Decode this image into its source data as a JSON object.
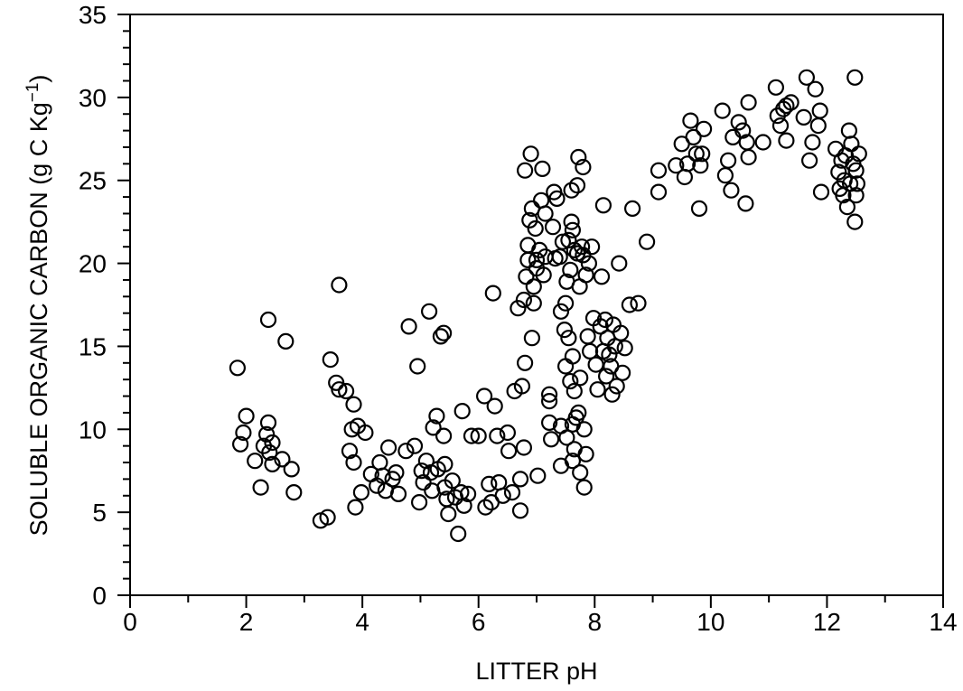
{
  "chart_data": {
    "type": "scatter",
    "xlabel": "LITTER pH",
    "ylabel_main": "SOLUBLE ORGANIC CARBON (g C Kg",
    "ylabel_sup": "−1",
    "ylabel_close": ")",
    "xlim": [
      0,
      14
    ],
    "ylim": [
      0,
      35
    ],
    "x_ticks": [
      "0",
      "2",
      "4",
      "6",
      "8",
      "10",
      "12",
      "14"
    ],
    "y_ticks": [
      "0",
      "5",
      "10",
      "15",
      "20",
      "25",
      "30",
      "35"
    ],
    "grid": false,
    "marker": "open-circle",
    "series": [
      {
        "points": [
          [
            1.85,
            13.7
          ],
          [
            1.9,
            9.1
          ],
          [
            1.95,
            9.8
          ],
          [
            2.0,
            10.8
          ],
          [
            2.15,
            8.1
          ],
          [
            2.25,
            6.5
          ],
          [
            2.3,
            9.0
          ],
          [
            2.35,
            9.7
          ],
          [
            2.38,
            10.4
          ],
          [
            2.4,
            8.6
          ],
          [
            2.45,
            9.2
          ],
          [
            2.45,
            7.9
          ],
          [
            2.38,
            16.6
          ],
          [
            2.62,
            8.2
          ],
          [
            2.68,
            15.3
          ],
          [
            2.78,
            7.6
          ],
          [
            2.82,
            6.2
          ],
          [
            3.28,
            4.5
          ],
          [
            3.4,
            4.7
          ],
          [
            3.45,
            14.2
          ],
          [
            3.55,
            12.8
          ],
          [
            3.6,
            12.4
          ],
          [
            3.6,
            18.7
          ],
          [
            3.72,
            12.3
          ],
          [
            3.78,
            8.7
          ],
          [
            3.82,
            10.0
          ],
          [
            3.85,
            11.5
          ],
          [
            3.85,
            8.0
          ],
          [
            3.88,
            5.3
          ],
          [
            3.92,
            10.2
          ],
          [
            3.98,
            6.2
          ],
          [
            4.05,
            9.8
          ],
          [
            4.15,
            7.3
          ],
          [
            4.25,
            6.6
          ],
          [
            4.3,
            8.0
          ],
          [
            4.35,
            7.2
          ],
          [
            4.4,
            6.3
          ],
          [
            4.45,
            8.9
          ],
          [
            4.52,
            7.0
          ],
          [
            4.58,
            7.4
          ],
          [
            4.62,
            6.1
          ],
          [
            4.75,
            8.7
          ],
          [
            4.8,
            16.2
          ],
          [
            4.9,
            9.0
          ],
          [
            4.95,
            13.8
          ],
          [
            4.98,
            5.6
          ],
          [
            5.02,
            7.5
          ],
          [
            5.05,
            6.8
          ],
          [
            5.1,
            8.1
          ],
          [
            5.15,
            17.1
          ],
          [
            5.18,
            7.4
          ],
          [
            5.2,
            6.3
          ],
          [
            5.22,
            10.1
          ],
          [
            5.28,
            10.8
          ],
          [
            5.3,
            7.6
          ],
          [
            5.35,
            15.6
          ],
          [
            5.4,
            15.8
          ],
          [
            5.4,
            9.6
          ],
          [
            5.42,
            7.9
          ],
          [
            5.42,
            6.5
          ],
          [
            5.45,
            5.8
          ],
          [
            5.48,
            4.9
          ],
          [
            5.55,
            6.9
          ],
          [
            5.6,
            5.9
          ],
          [
            5.65,
            3.7
          ],
          [
            5.7,
            6.2
          ],
          [
            5.72,
            11.1
          ],
          [
            5.75,
            5.4
          ],
          [
            5.82,
            6.1
          ],
          [
            5.88,
            9.6
          ],
          [
            6.0,
            9.6
          ],
          [
            6.1,
            12.0
          ],
          [
            6.12,
            5.3
          ],
          [
            6.18,
            6.7
          ],
          [
            6.22,
            5.6
          ],
          [
            6.25,
            18.2
          ],
          [
            6.28,
            11.4
          ],
          [
            6.32,
            9.6
          ],
          [
            6.35,
            6.8
          ],
          [
            6.42,
            6.0
          ],
          [
            6.5,
            9.8
          ],
          [
            6.52,
            8.7
          ],
          [
            6.58,
            6.2
          ],
          [
            6.62,
            12.3
          ],
          [
            6.68,
            17.3
          ],
          [
            6.72,
            7.0
          ],
          [
            6.72,
            5.1
          ],
          [
            6.75,
            12.6
          ],
          [
            6.78,
            8.9
          ],
          [
            6.78,
            17.8
          ],
          [
            6.8,
            14.0
          ],
          [
            6.8,
            25.6
          ],
          [
            6.82,
            19.2
          ],
          [
            6.85,
            20.2
          ],
          [
            6.85,
            21.1
          ],
          [
            6.88,
            22.6
          ],
          [
            6.9,
            26.6
          ],
          [
            6.92,
            15.5
          ],
          [
            6.92,
            23.3
          ],
          [
            6.95,
            17.6
          ],
          [
            6.95,
            18.6
          ],
          [
            6.98,
            22.1
          ],
          [
            7.0,
            19.7
          ],
          [
            7.0,
            20.2
          ],
          [
            7.02,
            7.2
          ],
          [
            7.05,
            20.8
          ],
          [
            7.08,
            23.8
          ],
          [
            7.1,
            25.7
          ],
          [
            7.12,
            19.3
          ],
          [
            7.15,
            20.4
          ],
          [
            7.15,
            23.0
          ],
          [
            7.22,
            12.1
          ],
          [
            7.22,
            11.7
          ],
          [
            7.22,
            10.4
          ],
          [
            7.25,
            9.4
          ],
          [
            7.28,
            22.2
          ],
          [
            7.3,
            24.3
          ],
          [
            7.32,
            20.3
          ],
          [
            7.35,
            23.9
          ],
          [
            7.4,
            20.4
          ],
          [
            7.42,
            17.1
          ],
          [
            7.42,
            10.2
          ],
          [
            7.42,
            7.8
          ],
          [
            7.45,
            21.3
          ],
          [
            7.48,
            16.0
          ],
          [
            7.5,
            17.6
          ],
          [
            7.5,
            13.8
          ],
          [
            7.52,
            9.5
          ],
          [
            7.52,
            18.9
          ],
          [
            7.55,
            15.5
          ],
          [
            7.55,
            21.4
          ],
          [
            7.58,
            19.6
          ],
          [
            7.58,
            12.9
          ],
          [
            7.6,
            22.5
          ],
          [
            7.6,
            24.4
          ],
          [
            7.62,
            14.4
          ],
          [
            7.62,
            22.0
          ],
          [
            7.62,
            10.3
          ],
          [
            7.62,
            8.1
          ],
          [
            7.65,
            20.8
          ],
          [
            7.65,
            12.3
          ],
          [
            7.65,
            8.8
          ],
          [
            7.68,
            10.7
          ],
          [
            7.7,
            20.6
          ],
          [
            7.7,
            24.7
          ],
          [
            7.72,
            11.0
          ],
          [
            7.72,
            26.4
          ],
          [
            7.74,
            18.6
          ],
          [
            7.75,
            13.1
          ],
          [
            7.75,
            7.4
          ],
          [
            7.78,
            21.0
          ],
          [
            7.8,
            20.5
          ],
          [
            7.8,
            25.8
          ],
          [
            7.82,
            6.5
          ],
          [
            7.82,
            10.0
          ],
          [
            7.85,
            19.3
          ],
          [
            7.85,
            8.5
          ],
          [
            7.88,
            15.6
          ],
          [
            7.9,
            20.0
          ],
          [
            7.92,
            14.7
          ],
          [
            7.95,
            21.0
          ],
          [
            7.98,
            16.7
          ],
          [
            8.02,
            13.9
          ],
          [
            8.05,
            12.4
          ],
          [
            8.1,
            16.2
          ],
          [
            8.12,
            19.2
          ],
          [
            8.15,
            23.5
          ],
          [
            8.15,
            14.7
          ],
          [
            8.18,
            16.6
          ],
          [
            8.2,
            13.2
          ],
          [
            8.22,
            15.5
          ],
          [
            8.25,
            14.5
          ],
          [
            8.28,
            13.8
          ],
          [
            8.3,
            12.1
          ],
          [
            8.32,
            16.3
          ],
          [
            8.35,
            15.0
          ],
          [
            8.38,
            12.6
          ],
          [
            8.42,
            20.0
          ],
          [
            8.45,
            15.8
          ],
          [
            8.48,
            13.4
          ],
          [
            8.52,
            14.9
          ],
          [
            8.6,
            17.5
          ],
          [
            8.65,
            23.3
          ],
          [
            8.75,
            17.6
          ],
          [
            8.9,
            21.3
          ],
          [
            9.1,
            25.6
          ],
          [
            9.1,
            24.3
          ],
          [
            9.4,
            25.9
          ],
          [
            9.5,
            27.2
          ],
          [
            9.55,
            25.2
          ],
          [
            9.6,
            26.0
          ],
          [
            9.65,
            28.6
          ],
          [
            9.7,
            27.6
          ],
          [
            9.75,
            26.6
          ],
          [
            9.8,
            23.3
          ],
          [
            9.82,
            25.9
          ],
          [
            9.85,
            26.6
          ],
          [
            9.88,
            28.1
          ],
          [
            10.2,
            29.2
          ],
          [
            10.25,
            25.3
          ],
          [
            10.3,
            26.2
          ],
          [
            10.35,
            24.4
          ],
          [
            10.38,
            27.6
          ],
          [
            10.48,
            28.5
          ],
          [
            10.55,
            28.0
          ],
          [
            10.6,
            23.6
          ],
          [
            10.62,
            27.3
          ],
          [
            10.65,
            26.4
          ],
          [
            10.65,
            29.7
          ],
          [
            10.9,
            27.3
          ],
          [
            11.12,
            30.6
          ],
          [
            11.15,
            28.9
          ],
          [
            11.2,
            28.3
          ],
          [
            11.25,
            29.3
          ],
          [
            11.3,
            29.5
          ],
          [
            11.3,
            27.4
          ],
          [
            11.38,
            29.7
          ],
          [
            11.6,
            28.8
          ],
          [
            11.65,
            31.2
          ],
          [
            11.7,
            26.2
          ],
          [
            11.75,
            27.3
          ],
          [
            11.8,
            30.5
          ],
          [
            11.85,
            28.3
          ],
          [
            11.88,
            29.2
          ],
          [
            11.9,
            24.3
          ],
          [
            12.15,
            26.9
          ],
          [
            12.2,
            25.5
          ],
          [
            12.22,
            24.5
          ],
          [
            12.25,
            26.2
          ],
          [
            12.28,
            24.1
          ],
          [
            12.3,
            25.0
          ],
          [
            12.32,
            26.5
          ],
          [
            12.35,
            23.4
          ],
          [
            12.38,
            28.0
          ],
          [
            12.4,
            24.8
          ],
          [
            12.42,
            27.2
          ],
          [
            12.45,
            26.0
          ],
          [
            12.48,
            22.5
          ],
          [
            12.5,
            25.6
          ],
          [
            12.5,
            24.1
          ],
          [
            12.48,
            31.2
          ],
          [
            12.55,
            26.6
          ],
          [
            12.52,
            24.8
          ]
        ]
      }
    ]
  }
}
